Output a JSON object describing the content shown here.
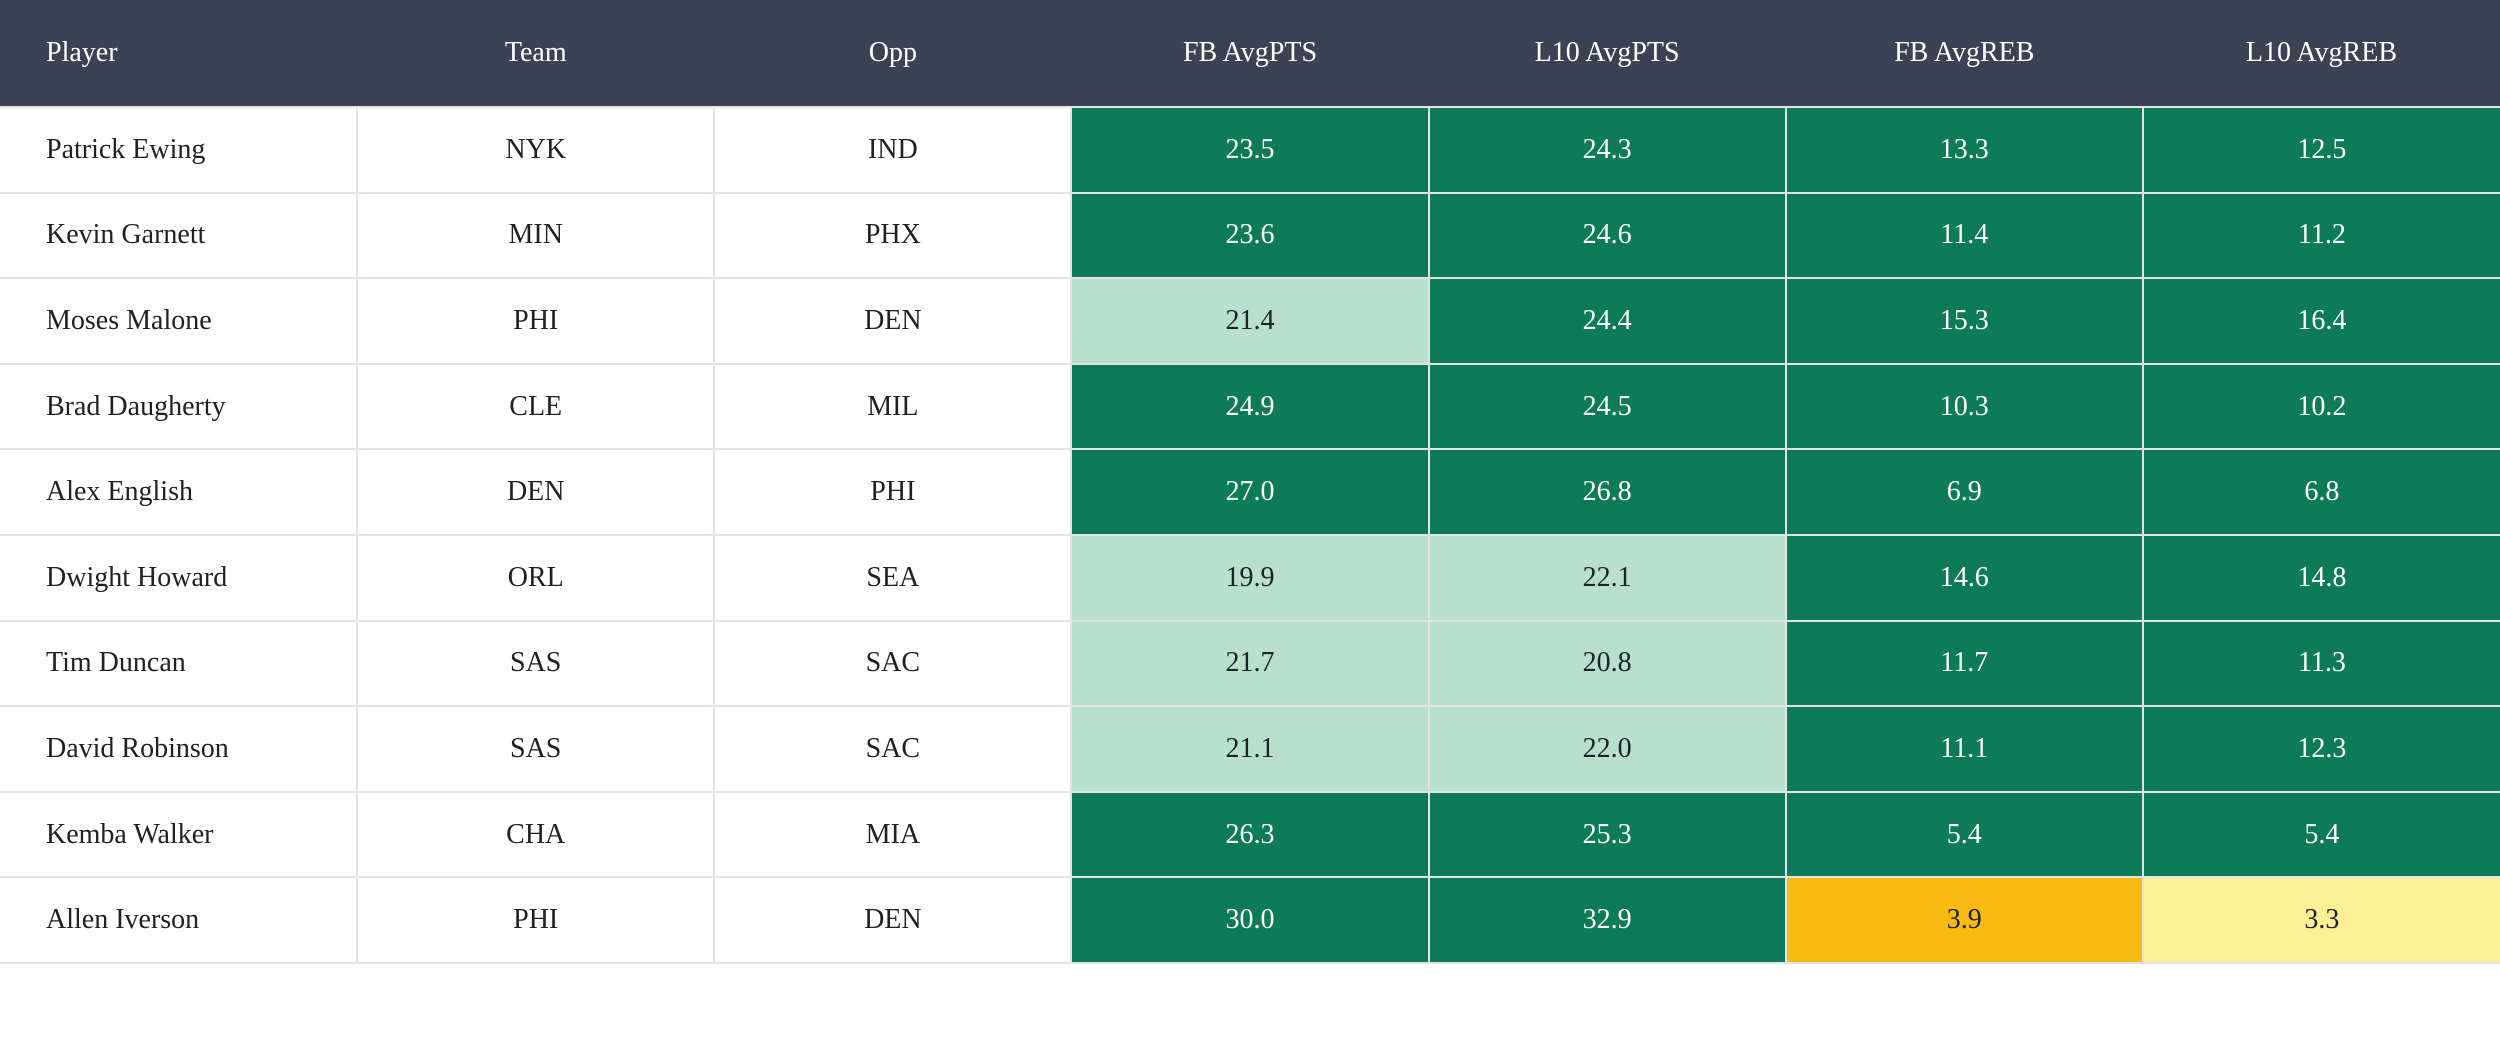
{
  "table": {
    "columns": [
      {
        "label": "Player"
      },
      {
        "label": "Team"
      },
      {
        "label": "Opp"
      },
      {
        "label": "FB AvgPTS"
      },
      {
        "label": "L10 AvgPTS"
      },
      {
        "label": "FB AvgREB"
      },
      {
        "label": "L10 AvgREB"
      }
    ],
    "rows": [
      {
        "player": "Patrick Ewing",
        "team": "NYK",
        "opp": "IND",
        "stats": [
          {
            "value": "23.5",
            "color": "dark_green"
          },
          {
            "value": "24.3",
            "color": "dark_green"
          },
          {
            "value": "13.3",
            "color": "dark_green"
          },
          {
            "value": "12.5",
            "color": "dark_green"
          }
        ]
      },
      {
        "player": "Kevin Garnett",
        "team": "MIN",
        "opp": "PHX",
        "stats": [
          {
            "value": "23.6",
            "color": "dark_green"
          },
          {
            "value": "24.6",
            "color": "dark_green"
          },
          {
            "value": "11.4",
            "color": "dark_green"
          },
          {
            "value": "11.2",
            "color": "dark_green"
          }
        ]
      },
      {
        "player": "Moses Malone",
        "team": "PHI",
        "opp": "DEN",
        "stats": [
          {
            "value": "21.4",
            "color": "light_green"
          },
          {
            "value": "24.4",
            "color": "dark_green"
          },
          {
            "value": "15.3",
            "color": "dark_green"
          },
          {
            "value": "16.4",
            "color": "dark_green"
          }
        ]
      },
      {
        "player": "Brad Daugherty",
        "team": "CLE",
        "opp": "MIL",
        "stats": [
          {
            "value": "24.9",
            "color": "dark_green"
          },
          {
            "value": "24.5",
            "color": "dark_green"
          },
          {
            "value": "10.3",
            "color": "dark_green"
          },
          {
            "value": "10.2",
            "color": "dark_green"
          }
        ]
      },
      {
        "player": "Alex English",
        "team": "DEN",
        "opp": "PHI",
        "stats": [
          {
            "value": "27.0",
            "color": "dark_green"
          },
          {
            "value": "26.8",
            "color": "dark_green"
          },
          {
            "value": "6.9",
            "color": "dark_green"
          },
          {
            "value": "6.8",
            "color": "dark_green"
          }
        ]
      },
      {
        "player": "Dwight Howard",
        "team": "ORL",
        "opp": "SEA",
        "stats": [
          {
            "value": "19.9",
            "color": "light_green"
          },
          {
            "value": "22.1",
            "color": "light_green"
          },
          {
            "value": "14.6",
            "color": "dark_green"
          },
          {
            "value": "14.8",
            "color": "dark_green"
          }
        ]
      },
      {
        "player": "Tim Duncan",
        "team": "SAS",
        "opp": "SAC",
        "stats": [
          {
            "value": "21.7",
            "color": "light_green"
          },
          {
            "value": "20.8",
            "color": "light_green"
          },
          {
            "value": "11.7",
            "color": "dark_green"
          },
          {
            "value": "11.3",
            "color": "dark_green"
          }
        ]
      },
      {
        "player": "David Robinson",
        "team": "SAS",
        "opp": "SAC",
        "stats": [
          {
            "value": "21.1",
            "color": "light_green"
          },
          {
            "value": "22.0",
            "color": "light_green"
          },
          {
            "value": "11.1",
            "color": "dark_green"
          },
          {
            "value": "12.3",
            "color": "dark_green"
          }
        ]
      },
      {
        "player": "Kemba Walker",
        "team": "CHA",
        "opp": "MIA",
        "stats": [
          {
            "value": "26.3",
            "color": "dark_green"
          },
          {
            "value": "25.3",
            "color": "dark_green"
          },
          {
            "value": "5.4",
            "color": "dark_green"
          },
          {
            "value": "5.4",
            "color": "dark_green"
          }
        ]
      },
      {
        "player": "Allen Iverson",
        "team": "PHI",
        "opp": "DEN",
        "stats": [
          {
            "value": "30.0",
            "color": "dark_green"
          },
          {
            "value": "32.9",
            "color": "dark_green"
          },
          {
            "value": "3.9",
            "color": "orange"
          },
          {
            "value": "3.3",
            "color": "light_yellow"
          }
        ]
      }
    ]
  },
  "colors": {
    "header_bg": "#3a4253",
    "header_text": "#ffffff",
    "row_bg": "#ffffff",
    "border": "#e1e3e8",
    "body_text": "#202124",
    "dark_green": "#0d7b58",
    "light_green": "#b7e1cd",
    "orange": "#f9ba11",
    "light_yellow": "#fbf096",
    "stat_text_on_dark": "#ffffff",
    "stat_text_on_light": "#1d2129"
  },
  "chart_data": {
    "type": "table",
    "columns": [
      "Player",
      "Team",
      "Opp",
      "FB AvgPTS",
      "L10 AvgPTS",
      "FB AvgREB",
      "L10 AvgREB"
    ],
    "rows": [
      [
        "Patrick Ewing",
        "NYK",
        "IND",
        23.5,
        24.3,
        13.3,
        12.5
      ],
      [
        "Kevin Garnett",
        "MIN",
        "PHX",
        23.6,
        24.6,
        11.4,
        11.2
      ],
      [
        "Moses Malone",
        "PHI",
        "DEN",
        21.4,
        24.4,
        15.3,
        16.4
      ],
      [
        "Brad Daugherty",
        "CLE",
        "MIL",
        24.9,
        24.5,
        10.3,
        10.2
      ],
      [
        "Alex English",
        "DEN",
        "PHI",
        27.0,
        26.8,
        6.9,
        6.8
      ],
      [
        "Dwight Howard",
        "ORL",
        "SEA",
        19.9,
        22.1,
        14.6,
        14.8
      ],
      [
        "Tim Duncan",
        "SAS",
        "SAC",
        21.7,
        20.8,
        11.7,
        11.3
      ],
      [
        "David Robinson",
        "SAS",
        "SAC",
        21.1,
        22.0,
        11.1,
        12.3
      ],
      [
        "Kemba Walker",
        "CHA",
        "MIA",
        26.3,
        25.3,
        5.4,
        5.4
      ],
      [
        "Allen Iverson",
        "PHI",
        "DEN",
        30.0,
        32.9,
        3.9,
        3.3
      ]
    ],
    "cell_highlighting": "green scale: dark green = strong, light green = moderate; orange/yellow = low values (Allen Iverson rebounds)"
  }
}
